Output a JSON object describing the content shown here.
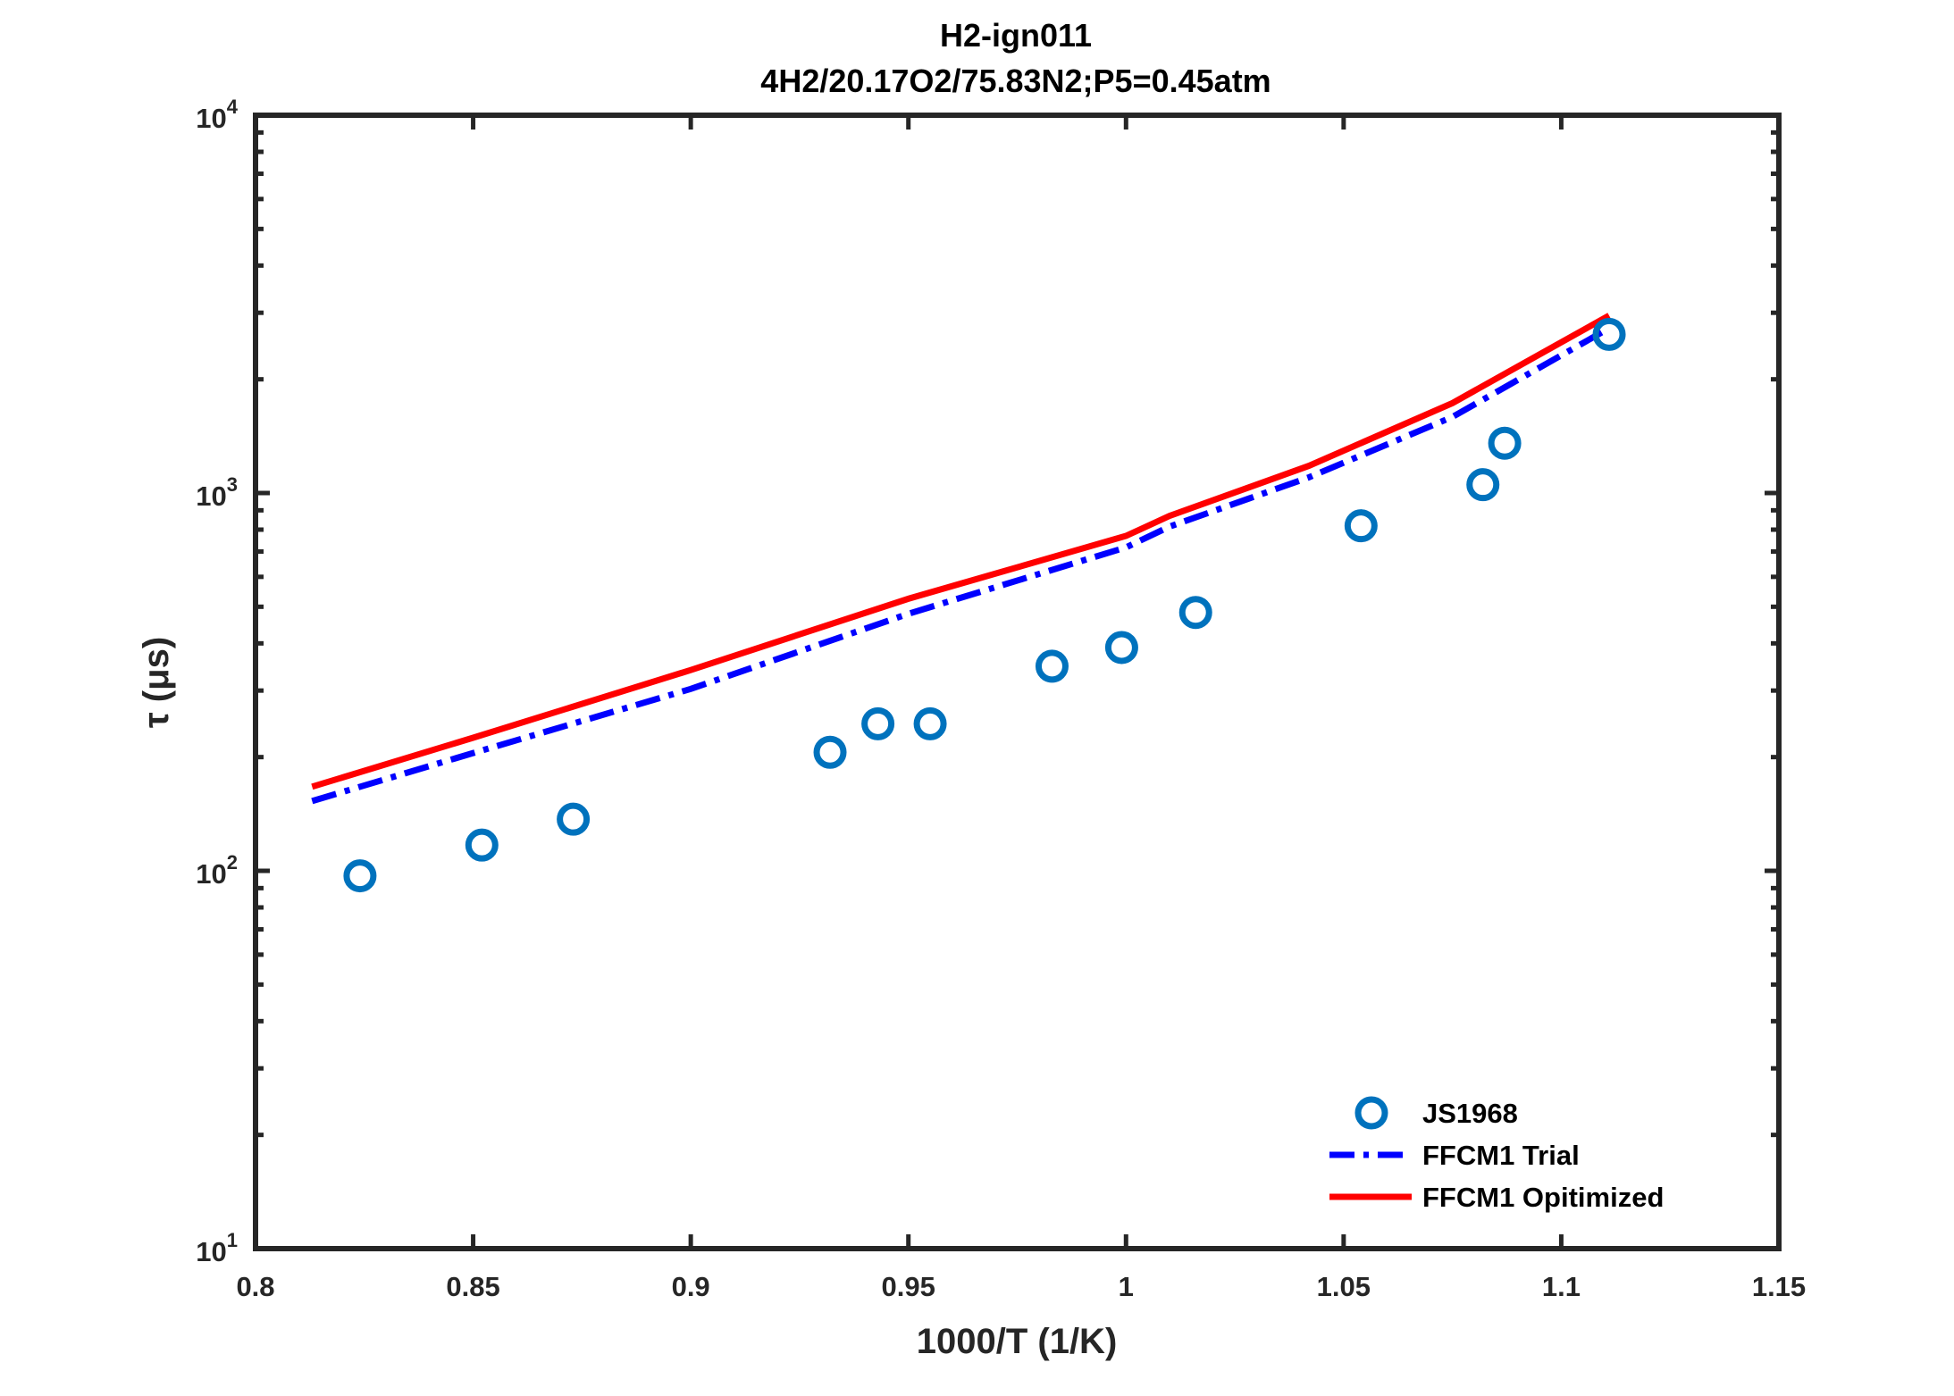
{
  "chart_data": {
    "type": "scatter",
    "title": "H2-ign011",
    "subtitle": "4H2/20.17O2/75.83N2;P5=0.45atm",
    "xlabel": "1000/T (1/K)",
    "ylabel": "τ (μs)",
    "xlim": [
      0.8,
      1.15
    ],
    "ylim": [
      10,
      10000
    ],
    "yscale": "log",
    "grid": false,
    "legend_position": "bottom-right",
    "xticks": [
      "0.8",
      "0.85",
      "0.9",
      "0.95",
      "1",
      "1.05",
      "1.1",
      "1.15"
    ],
    "yticks": [
      {
        "base": "10",
        "exp": "1"
      },
      {
        "base": "10",
        "exp": "2"
      },
      {
        "base": "10",
        "exp": "3"
      },
      {
        "base": "10",
        "exp": "4"
      }
    ],
    "series": [
      {
        "name": "JS1968",
        "kind": "markers",
        "color": "#0072BD",
        "x": [
          0.824,
          0.852,
          0.873,
          0.932,
          0.943,
          0.955,
          0.983,
          0.999,
          1.016,
          1.054,
          1.082,
          1.087,
          1.111
        ],
        "y": [
          97,
          117,
          137,
          206,
          245,
          245,
          348,
          390,
          483,
          819,
          1052,
          1355,
          2630
        ]
      },
      {
        "name": "FFCM1 Trial",
        "kind": "dashdot",
        "color": "#0000FF",
        "x": [
          0.813,
          0.85,
          0.9,
          0.95,
          1.0,
          1.01,
          1.042,
          1.075,
          1.111
        ],
        "y": [
          153,
          205,
          303,
          479,
          718,
          815,
          1100,
          1590,
          2730
        ]
      },
      {
        "name": "FFCM1 Opitimized",
        "kind": "solid",
        "color": "#FF0000",
        "x": [
          0.813,
          0.85,
          0.9,
          0.95,
          1.0,
          1.01,
          1.042,
          1.075,
          1.111
        ],
        "y": [
          167,
          225,
          340,
          525,
          770,
          870,
          1180,
          1730,
          2950
        ]
      }
    ]
  }
}
